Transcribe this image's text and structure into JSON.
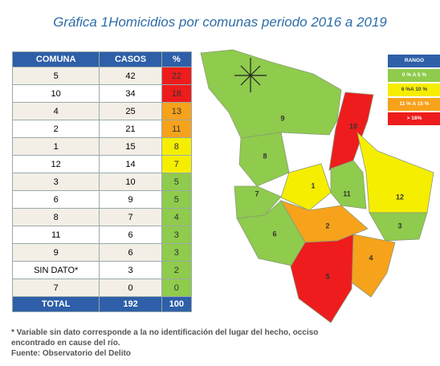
{
  "title": "Gráfica 1Homicidios por comunas periodo 2016 a 2019",
  "table": {
    "header": [
      "COMUNA",
      "CASOS",
      "%"
    ],
    "rows": [
      [
        "5",
        "42",
        "22"
      ],
      [
        "10",
        "34",
        "18"
      ],
      [
        "4",
        "25",
        "13"
      ],
      [
        "2",
        "21",
        "11"
      ],
      [
        "1",
        "15",
        "8"
      ],
      [
        "12",
        "14",
        "7"
      ],
      [
        "3",
        "10",
        "5"
      ],
      [
        "6",
        "9",
        "5"
      ],
      [
        "8",
        "7",
        "4"
      ],
      [
        "11",
        "6",
        "3"
      ],
      [
        "9",
        "6",
        "3"
      ],
      [
        "SIN DATO*",
        "3",
        "2"
      ],
      [
        "7",
        "0",
        "0"
      ]
    ],
    "total": [
      "TOTAL",
      "192",
      "100"
    ]
  },
  "legend": {
    "title": "RANGO",
    "items": [
      {
        "label": "0 % A 5 %",
        "color": "#8fcb4c"
      },
      {
        "label": "6 %A 10 %",
        "color": "#f5ee00"
      },
      {
        "label": "11 % A 15 %",
        "color": "#f7a21b"
      },
      {
        "label": "> 16%",
        "color": "#ee1c1c"
      }
    ]
  },
  "map": {
    "labels": [
      "9",
      "10",
      "8",
      "7",
      "1",
      "11",
      "12",
      "2",
      "3",
      "6",
      "4",
      "5"
    ]
  },
  "notes": [
    "* Variable sin dato corresponde a la no identificación del lugar del hecho, occiso",
    "encontrado en cause del río.",
    "Fuente: Observatorio del Delito"
  ]
}
